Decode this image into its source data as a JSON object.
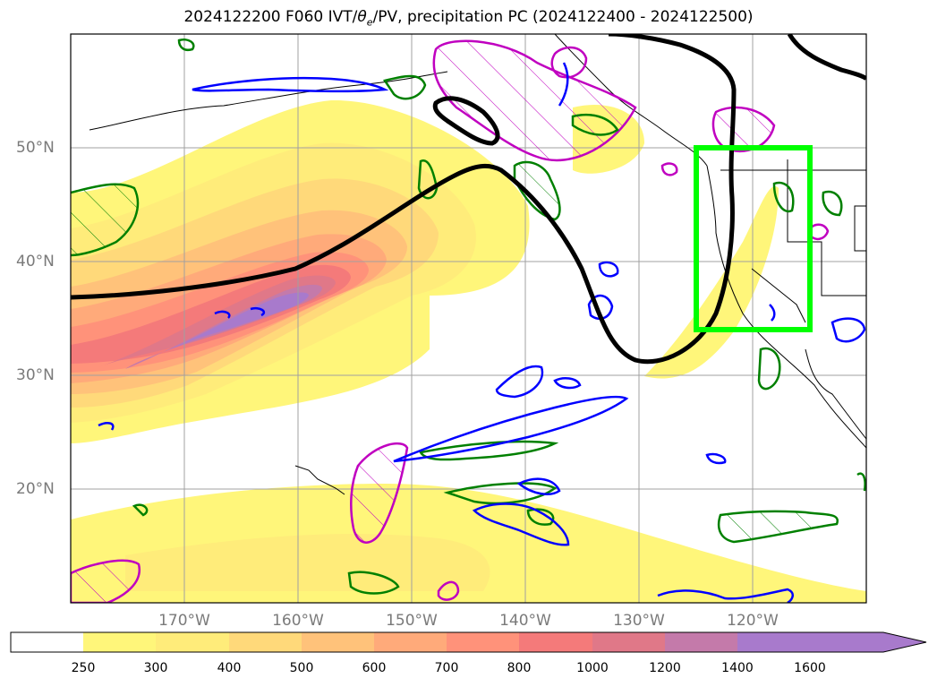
{
  "title": {
    "prefix": "2024122200 F060 IVT/",
    "theta": "θ",
    "theta_sub": "e",
    "suffix": "/PV, precipitation PC (2024122400 - 2024122500)"
  },
  "lat_labels": [
    "50°N",
    "40°N",
    "30°N",
    "20°N"
  ],
  "lon_labels": [
    "170°W",
    "160°W",
    "150°W",
    "140°W",
    "130°W",
    "120°W"
  ],
  "colorbar": {
    "ticks": [
      "250",
      "300",
      "400",
      "500",
      "600",
      "700",
      "800",
      "1000",
      "1200",
      "1400",
      "1600"
    ],
    "colors": [
      "#ffffff",
      "#fff67a",
      "#ffec7a",
      "#ffd97a",
      "#ffc27a",
      "#ffaa7a",
      "#ff927a",
      "#f47a7a",
      "#e07888",
      "#c47aaa",
      "#a87acc"
    ],
    "extend": "max"
  },
  "colors": {
    "jet_core": "#a87acc",
    "pv_contour": "#000000",
    "theta_e_blue": "#0000ff",
    "precip_green": "#008000",
    "magenta_hatch": "#c000c0",
    "region_box": "#00ff00",
    "grid": "#a0a0a0"
  },
  "map": {
    "lon_range": [
      "180°W",
      "110°W"
    ],
    "lat_range": [
      "10°N",
      "60°N"
    ],
    "highlight_region": "US West Coast box"
  }
}
